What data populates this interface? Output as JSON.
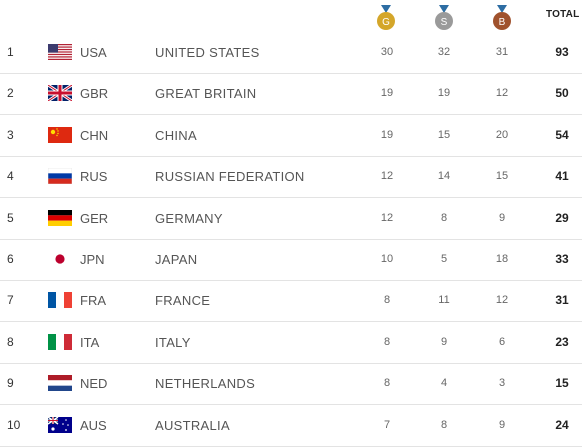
{
  "header": {
    "gold_letter": "G",
    "silver_letter": "S",
    "bronze_letter": "B",
    "total_label": "TOTAL",
    "gold_color": "#d4a62a",
    "silver_color": "#9a9a9a",
    "bronze_color": "#a0522d"
  },
  "rows": [
    {
      "rank": "1",
      "code": "USA",
      "country": "UNITED STATES",
      "gold": "30",
      "silver": "32",
      "bronze": "31",
      "total": "93",
      "flag": "usa-flag-icon"
    },
    {
      "rank": "2",
      "code": "GBR",
      "country": "GREAT BRITAIN",
      "gold": "19",
      "silver": "19",
      "bronze": "12",
      "total": "50",
      "flag": "gbr-flag-icon"
    },
    {
      "rank": "3",
      "code": "CHN",
      "country": "CHINA",
      "gold": "19",
      "silver": "15",
      "bronze": "20",
      "total": "54",
      "flag": "chn-flag-icon"
    },
    {
      "rank": "4",
      "code": "RUS",
      "country": "RUSSIAN FEDERATION",
      "gold": "12",
      "silver": "14",
      "bronze": "15",
      "total": "41",
      "flag": "rus-flag-icon"
    },
    {
      "rank": "5",
      "code": "GER",
      "country": "GERMANY",
      "gold": "12",
      "silver": "8",
      "bronze": "9",
      "total": "29",
      "flag": "ger-flag-icon"
    },
    {
      "rank": "6",
      "code": "JPN",
      "country": "JAPAN",
      "gold": "10",
      "silver": "5",
      "bronze": "18",
      "total": "33",
      "flag": "jpn-flag-icon"
    },
    {
      "rank": "7",
      "code": "FRA",
      "country": "FRANCE",
      "gold": "8",
      "silver": "11",
      "bronze": "12",
      "total": "31",
      "flag": "fra-flag-icon"
    },
    {
      "rank": "8",
      "code": "ITA",
      "country": "ITALY",
      "gold": "8",
      "silver": "9",
      "bronze": "6",
      "total": "23",
      "flag": "ita-flag-icon"
    },
    {
      "rank": "9",
      "code": "NED",
      "country": "NETHERLANDS",
      "gold": "8",
      "silver": "4",
      "bronze": "3",
      "total": "15",
      "flag": "ned-flag-icon"
    },
    {
      "rank": "10",
      "code": "AUS",
      "country": "AUSTRALIA",
      "gold": "7",
      "silver": "8",
      "bronze": "9",
      "total": "24",
      "flag": "aus-flag-icon"
    }
  ]
}
